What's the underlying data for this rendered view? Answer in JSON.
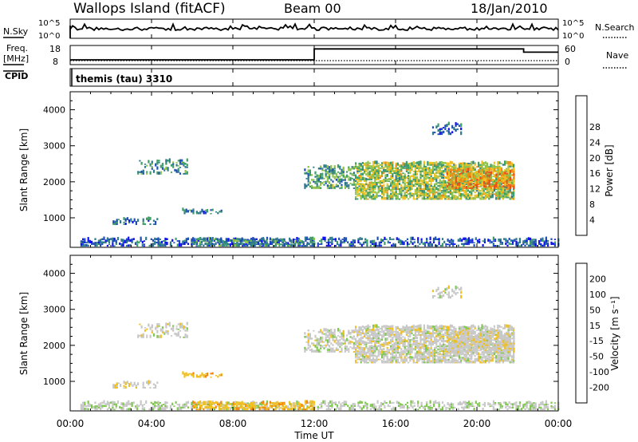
{
  "header": {
    "station": "Wallops Island (fitACF)",
    "beam": "Beam 00",
    "date": "18/Jan/2010"
  },
  "side_labels": {
    "nsky": "N.Sky",
    "freq_line1": "Freq.",
    "freq_line2": "[MHz]",
    "cpid": "CPID",
    "nsearch": "N.Search",
    "nave": "Nave"
  },
  "cpid_text": "themis (tau) 3310",
  "x_axis": {
    "label": "Time UT",
    "ticks": [
      "00:00",
      "04:00",
      "08:00",
      "12:00",
      "16:00",
      "20:00",
      "00:00"
    ],
    "range_hours": [
      0,
      24
    ]
  },
  "noise_panel": {
    "left_ticks": [
      "10^5",
      "10^0"
    ],
    "right_ticks": [
      "10^5",
      "10^0"
    ]
  },
  "freq_panel": {
    "left_ticks": [
      "18",
      "8"
    ],
    "right_ticks": [
      "60",
      "0"
    ]
  },
  "range_axis": {
    "label": "Slant Range [km]",
    "ticks": [
      "1000",
      "2000",
      "3000",
      "4000"
    ],
    "range_km": [
      180,
      4500
    ]
  },
  "power_colorbar": {
    "label": "Power [dB]",
    "ticks": [
      "4",
      "8",
      "12",
      "16",
      "20",
      "24",
      "28"
    ],
    "colors": [
      "#1010f0",
      "#1f4fb5",
      "#2f7a8c",
      "#3f9e66",
      "#8fc24a",
      "#f0c020",
      "#f08a10",
      "#e85018",
      "#e01818"
    ]
  },
  "velocity_colorbar": {
    "label": "Velocity [m s⁻¹]",
    "ticks": [
      "200",
      "100",
      "50",
      "15",
      "-15",
      "-50",
      "-100",
      "-200"
    ],
    "colors": [
      "#1018d8",
      "#1f4fa8",
      "#2f7f55",
      "#80c850",
      "#c8c8c8",
      "#f0c020",
      "#f08a10",
      "#e85018",
      "#e01818"
    ]
  },
  "chart_data": {
    "type": "heatmap",
    "title": "Wallops Island (fitACF)",
    "xlabel": "Time UT",
    "ylabel": "Slant Range [km]",
    "xlim_hours": [
      0,
      24
    ],
    "ylim_km": [
      180,
      4500
    ],
    "frequency_mhz": [
      {
        "start_h": 0.0,
        "end_h": 12.0,
        "value": 10.5
      },
      {
        "start_h": 12.0,
        "end_h": 22.3,
        "value": 16.2
      },
      {
        "start_h": 22.3,
        "end_h": 24.0,
        "value": 14.5
      }
    ],
    "echo_regions": [
      {
        "t0": 0.5,
        "t1": 24.0,
        "r0": 200,
        "r1": 420,
        "power": 6,
        "velocity": 10,
        "density": 0.45
      },
      {
        "t0": 6.0,
        "t1": 12.0,
        "r0": 200,
        "r1": 420,
        "power": 10,
        "velocity": -40,
        "density": 0.55
      },
      {
        "t0": 2.0,
        "t1": 4.3,
        "r0": 800,
        "r1": 960,
        "power": 8,
        "velocity": -5,
        "density": 0.35
      },
      {
        "t0": 5.5,
        "t1": 7.5,
        "r0": 1100,
        "r1": 1200,
        "power": 9,
        "velocity": -40,
        "density": 0.35
      },
      {
        "t0": 3.3,
        "t1": 5.8,
        "r0": 2200,
        "r1": 2600,
        "power": 10,
        "velocity": 0,
        "density": 0.3
      },
      {
        "t0": 11.5,
        "t1": 14.0,
        "r0": 1800,
        "r1": 2400,
        "power": 12,
        "velocity": 0,
        "density": 0.4
      },
      {
        "t0": 14.0,
        "t1": 21.8,
        "r0": 1500,
        "r1": 2500,
        "power": 16,
        "velocity": 0,
        "density": 0.7
      },
      {
        "t0": 18.5,
        "t1": 21.8,
        "r0": 1800,
        "r1": 2300,
        "power": 22,
        "velocity": -5,
        "density": 0.6
      },
      {
        "t0": 17.8,
        "t1": 19.2,
        "r0": 3300,
        "r1": 3600,
        "power": 8,
        "velocity": 0,
        "density": 0.3
      }
    ]
  }
}
